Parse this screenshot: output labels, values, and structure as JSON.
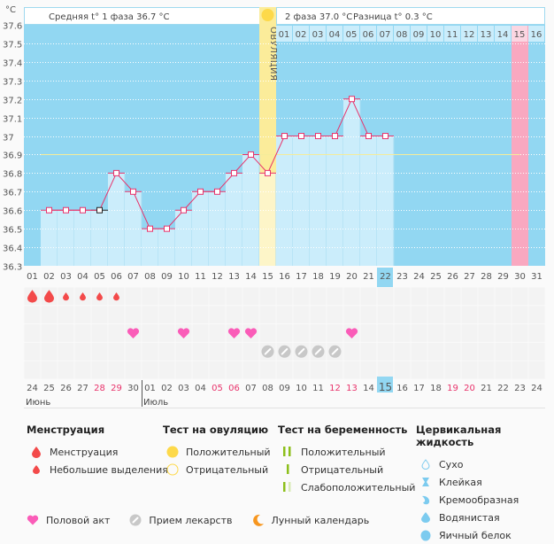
{
  "header": {
    "unit_label": "°C",
    "phase1_text": "Средняя t° 1 фаза 36.7 °C",
    "phase2_text": "2 фаза 37.0 °C",
    "diff_text": "Разница t° 0.3 °C",
    "ovulation_label": "ОВУЛЯЦИЯ"
  },
  "chart_data": {
    "type": "line",
    "title": "Basal body temperature chart",
    "ylabel": "°C",
    "ylim": [
      36.3,
      37.6
    ],
    "yticks": [
      "37.6",
      "37.5",
      "37.4",
      "37.3",
      "37.2",
      "37.1",
      "37",
      "36.9",
      "36.8",
      "36.7",
      "36.6",
      "36.5",
      "36.4",
      "36.3"
    ],
    "cycle_days": [
      "01",
      "02",
      "03",
      "04",
      "05",
      "06",
      "07",
      "08",
      "09",
      "10",
      "11",
      "12",
      "13",
      "14",
      "15",
      "16",
      "17",
      "18",
      "19",
      "20",
      "21",
      "22",
      "23",
      "24",
      "25",
      "26",
      "27",
      "28",
      "29",
      "30",
      "31"
    ],
    "temperatures": [
      null,
      36.6,
      36.6,
      36.6,
      36.6,
      36.8,
      36.7,
      36.5,
      36.5,
      36.6,
      36.7,
      36.7,
      36.8,
      36.9,
      36.8,
      37.0,
      37.0,
      37.0,
      37.0,
      37.2,
      37.0,
      37.0,
      null,
      null,
      null,
      null,
      null,
      null,
      null,
      null,
      null
    ],
    "edited_point_day": 5,
    "coverline": 36.9,
    "ovulation_day": 15,
    "expected_period_day": 30,
    "current_cycle_day": 22,
    "phase2_day_labels": [
      "01",
      "02",
      "03",
      "04",
      "05",
      "06",
      "07",
      "08",
      "09",
      "10",
      "11",
      "12",
      "13",
      "14",
      "15",
      "16"
    ],
    "phase2_highlight_label": "15",
    "calendar_dates": [
      "24",
      "25",
      "26",
      "27",
      "28",
      "29",
      "30",
      "01",
      "02",
      "03",
      "04",
      "05",
      "06",
      "07",
      "08",
      "09",
      "10",
      "11",
      "12",
      "13",
      "14",
      "15",
      "16",
      "17",
      "18",
      "19",
      "20",
      "21",
      "22",
      "23",
      "24"
    ],
    "weekend_dates_idx": [
      4,
      5,
      11,
      12,
      18,
      19,
      25,
      26
    ],
    "today_idx": 21,
    "months": [
      {
        "label": "Июнь",
        "start_idx": 0
      },
      {
        "label": "Июль",
        "start_idx": 7
      }
    ],
    "menstruation": {
      "heavy_days": [
        1,
        2
      ],
      "light_days": [
        3,
        4,
        5,
        6
      ]
    },
    "intercourse_days": [
      7,
      10,
      13,
      14,
      20
    ],
    "medication_days": [
      15,
      16,
      17,
      18,
      19
    ]
  },
  "colors": {
    "plot_bg": "#92d7f2",
    "bar_fill": "#cbedfb",
    "line": "#e8336b",
    "coverline": "#f5ec9a",
    "ovulation": "#fbec9a",
    "period_expected": "#f9a8c0",
    "blood": "#f34a4a",
    "heart": "#fa5cb8",
    "pill": "#c8c8c8",
    "weekend": "#e8336b",
    "today_bg": "#92d7f2",
    "test_green": "#8cbf1a"
  },
  "legend": {
    "menstruation": {
      "title": "Менструация",
      "items": [
        "Менструация",
        "Небольшие выделения"
      ]
    },
    "ovulation_test": {
      "title": "Тест на овуляцию",
      "items": [
        "Положительный",
        "Отрицательный"
      ]
    },
    "pregnancy_test": {
      "title": "Тест на беременность",
      "items": [
        "Положительный",
        "Отрицательный",
        "Слабоположительный"
      ]
    },
    "cervical_fluid": {
      "title": "Цервикальная жидкость",
      "items": [
        "Сухо",
        "Клейкая",
        "Кремообразная",
        "Водянистая",
        "Яичный белок"
      ]
    },
    "bottom": [
      "Половой акт",
      "Прием лекарств",
      "Лунный календарь"
    ]
  }
}
